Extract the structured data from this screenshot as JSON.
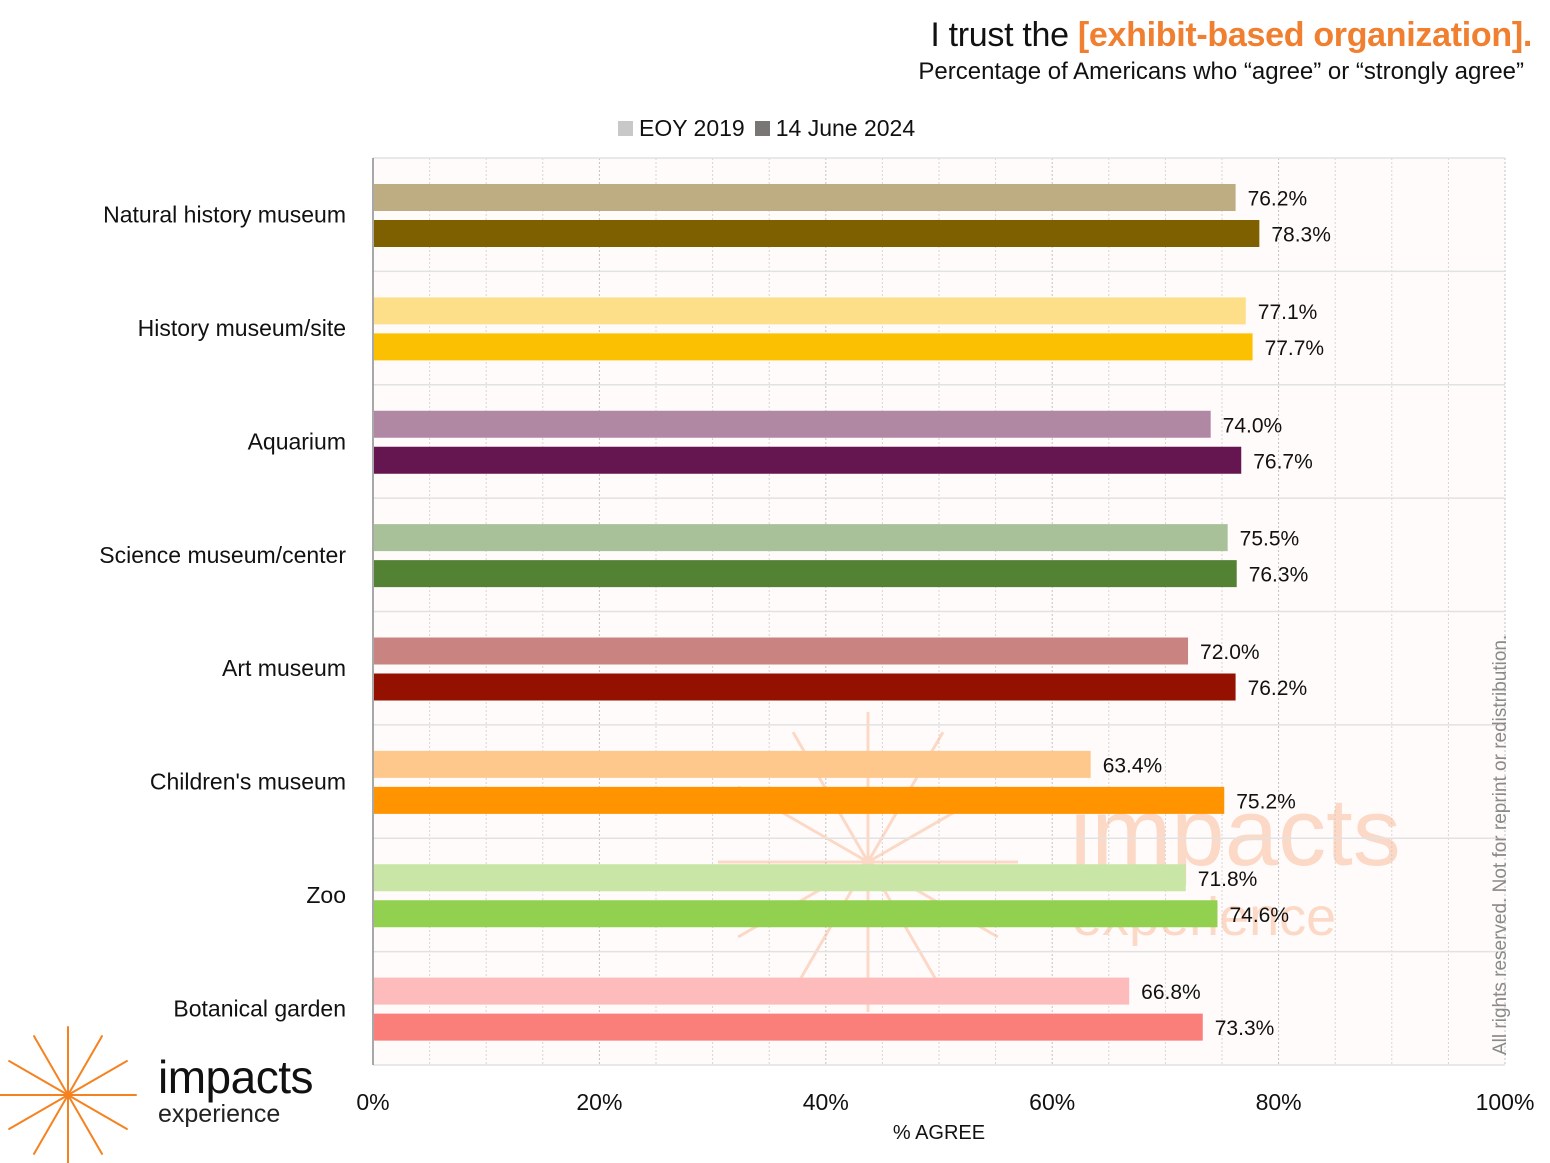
{
  "header": {
    "title_prefix": "I trust the ",
    "title_highlight": "[exhibit-based organization].",
    "subtitle": "Percentage of Americans who “agree” or “strongly agree”"
  },
  "colors": {
    "highlight": "#F07F30",
    "plot_background": "#FFFBFA",
    "gridline": "#BDBDBD",
    "legend_2019": "#C8C8C8",
    "legend_2024": "#7A7676",
    "watermark": "#FCD9C6",
    "logo": "#F58220"
  },
  "legend": [
    {
      "label": "EOY 2019",
      "color": "#C8C8C8"
    },
    {
      "label": "14 June 2024",
      "color": "#7A7676"
    }
  ],
  "branding": {
    "logo_word": "impacts",
    "logo_sub": "experience",
    "rights_notice": "All rights reserved. Not for reprint or redistribution."
  },
  "chart_data": {
    "type": "bar",
    "orientation": "horizontal",
    "title": "I trust the [exhibit-based organization].",
    "subtitle": "Percentage of Americans who “agree” or “strongly agree”",
    "xlabel": "% AGREE",
    "ylabel": "",
    "xlim": [
      0,
      100
    ],
    "x_ticks": [
      "0%",
      "20%",
      "40%",
      "60%",
      "80%",
      "100%"
    ],
    "x_tick_values": [
      0,
      20,
      40,
      60,
      80,
      100
    ],
    "grid": true,
    "legend_position": "top",
    "categories": [
      "Natural history museum",
      "History museum/site",
      "Aquarium",
      "Science museum/center",
      "Art museum",
      "Children's museum",
      "Zoo",
      "Botanical garden"
    ],
    "series": [
      {
        "name": "EOY 2019",
        "values": [
          76.2,
          77.1,
          74.0,
          75.5,
          72.0,
          63.4,
          71.8,
          66.8
        ],
        "labels": [
          "76.2%",
          "77.1%",
          "74.0%",
          "75.5%",
          "72.0%",
          "63.4%",
          "71.8%",
          "66.8%"
        ],
        "colors": [
          "#BEAC82",
          "#FDDF8A",
          "#B088A4",
          "#A8C198",
          "#C98380",
          "#FEC88D",
          "#C9E6A7",
          "#FDBBBB"
        ]
      },
      {
        "name": "14 June 2024",
        "values": [
          78.3,
          77.7,
          76.7,
          76.3,
          76.2,
          75.2,
          74.6,
          73.3
        ],
        "labels": [
          "78.3%",
          "77.7%",
          "76.7%",
          "76.3%",
          "76.2%",
          "75.2%",
          "74.6%",
          "73.3%"
        ],
        "colors": [
          "#7F6000",
          "#FBC002",
          "#65154F",
          "#548235",
          "#941100",
          "#FF9300",
          "#92D050",
          "#FA7F7A"
        ]
      }
    ]
  }
}
